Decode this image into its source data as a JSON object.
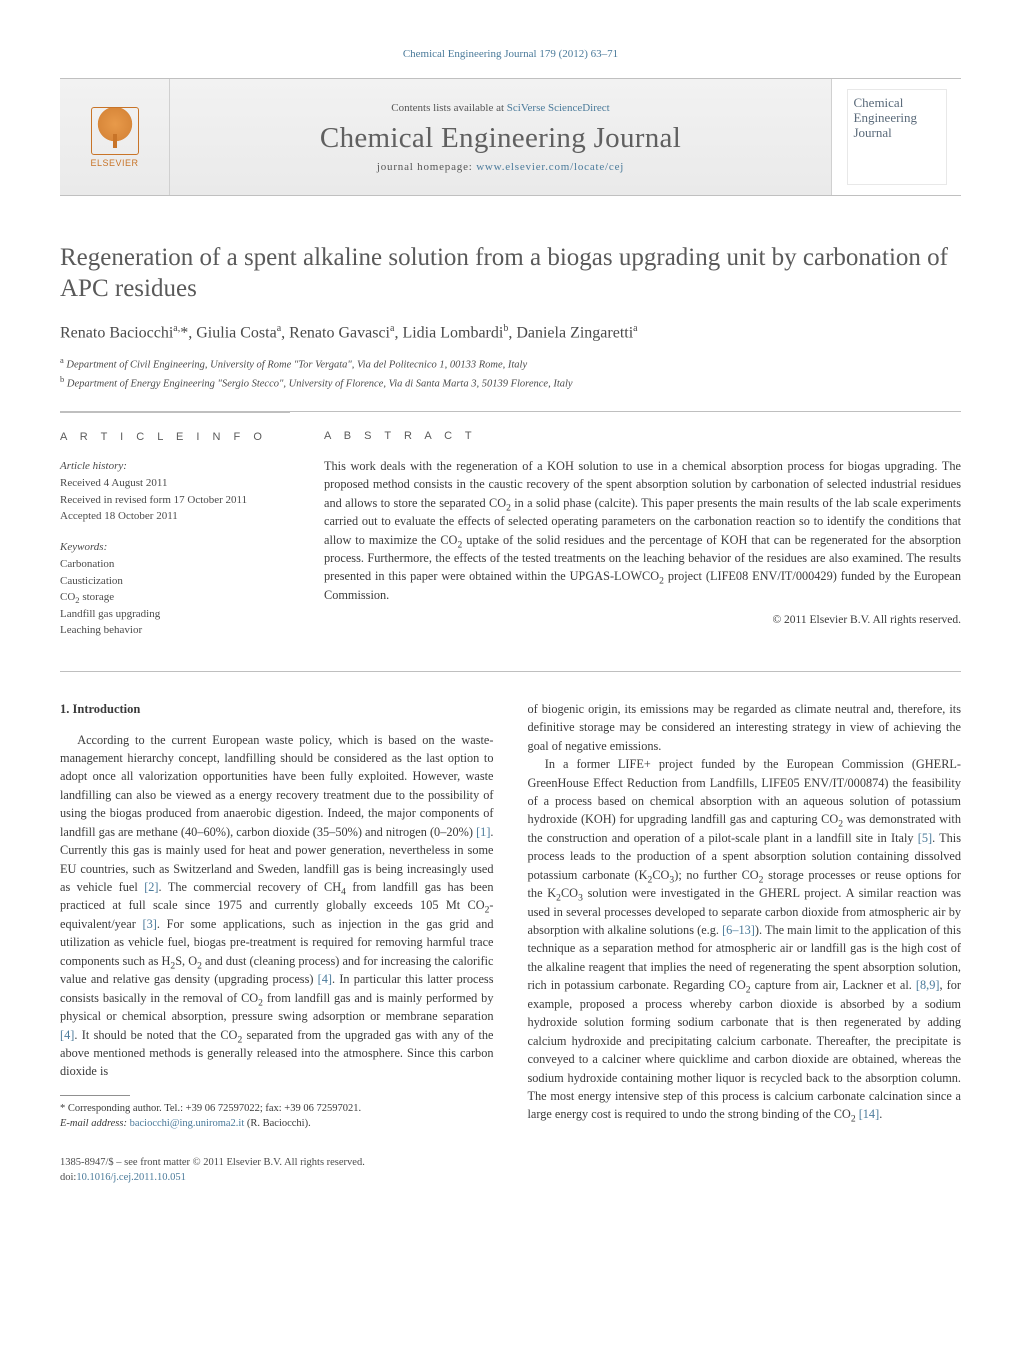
{
  "header": {
    "citation": "Chemical Engineering Journal 179 (2012) 63–71",
    "contents_prefix": "Contents lists available at ",
    "contents_link": "SciVerse ScienceDirect",
    "journal_title": "Chemical Engineering Journal",
    "homepage_prefix": "journal homepage: ",
    "homepage_url": "www.elsevier.com/locate/cej",
    "publisher": "ELSEVIER",
    "cover_text_l1": "Chemical",
    "cover_text_l2": "Engineering",
    "cover_text_l3": "Journal"
  },
  "article": {
    "title": "Regeneration of a spent alkaline solution from a biogas upgrading unit by carbonation of APC residues",
    "authors_html": "Renato Baciocchi<sup>a,</sup>*, Giulia Costa<sup>a</sup>, Renato Gavasci<sup>a</sup>, Lidia Lombardi<sup>b</sup>, Daniela Zingaretti<sup>a</sup>",
    "affiliations": [
      "Department of Civil Engineering, University of Rome \"Tor Vergata\", Via del Politecnico 1, 00133 Rome, Italy",
      "Department of Energy Engineering \"Sergio Stecco\", University of Florence, Via di Santa Marta 3, 50139 Florence, Italy"
    ],
    "aff_markers": [
      "a",
      "b"
    ]
  },
  "info": {
    "heading": "A R T I C L E    I N F O",
    "history_head": "Article history:",
    "history": [
      "Received 4 August 2011",
      "Received in revised form 17 October 2011",
      "Accepted 18 October 2011"
    ],
    "keywords_head": "Keywords:",
    "keywords": [
      "Carbonation",
      "Causticization",
      "CO₂ storage",
      "Landfill gas upgrading",
      "Leaching behavior"
    ]
  },
  "abstract": {
    "heading": "A B S T R A C T",
    "text": "This work deals with the regeneration of a KOH solution to use in a chemical absorption process for biogas upgrading. The proposed method consists in the caustic recovery of the spent absorption solution by carbonation of selected industrial residues and allows to store the separated CO₂ in a solid phase (calcite). This paper presents the main results of the lab scale experiments carried out to evaluate the effects of selected operating parameters on the carbonation reaction so to identify the conditions that allow to maximize the CO₂ uptake of the solid residues and the percentage of KOH that can be regenerated for the absorption process. Furthermore, the effects of the tested treatments on the leaching behavior of the residues are also examined. The results presented in this paper were obtained within the UPGAS-LOWCO₂ project (LIFE08 ENV/IT/000429) funded by the European Commission.",
    "copyright": "© 2011 Elsevier B.V. All rights reserved."
  },
  "body": {
    "section_heading": "1.  Introduction",
    "p1": "According to the current European waste policy, which is based on the waste-management hierarchy concept, landfilling should be considered as the last option to adopt once all valorization opportunities have been fully exploited. However, waste landfilling can also be viewed as a energy recovery treatment due to the possibility of using the biogas produced from anaerobic digestion. Indeed, the major components of landfill gas are methane (40–60%), carbon dioxide (35–50%) and nitrogen (0–20%) [1]. Currently this gas is mainly used for heat and power generation, nevertheless in some EU countries, such as Switzerland and Sweden, landfill gas is being increasingly used as vehicle fuel [2]. The commercial recovery of CH₄ from landfill gas has been practiced at full scale since 1975 and currently globally exceeds 105 Mt CO₂-equivalent/year [3]. For some applications, such as injection in the gas grid and utilization as vehicle fuel, biogas pre-treatment is required for removing harmful trace components such as H₂S, O₂ and dust (cleaning process) and for increasing the calorific value and relative gas density (upgrading process) [4]. In particular this latter process consists basically in the removal of CO₂ from landfill gas and is mainly performed by physical or chemical absorption, pressure swing adsorption or membrane separation [4]. It should be noted that the CO₂ separated from the upgraded gas with any of the above mentioned methods is generally released into the atmosphere. Since this carbon dioxide is",
    "p2": "of biogenic origin, its emissions may be regarded as climate neutral and, therefore, its definitive storage may be considered an interesting strategy in view of achieving the goal of negative emissions.",
    "p3": "In a former LIFE+ project funded by the European Commission (GHERL-GreenHouse Effect Reduction from Landfills, LIFE05 ENV/IT/000874) the feasibility of a process based on chemical absorption with an aqueous solution of potassium hydroxide (KOH) for upgrading landfill gas and capturing CO₂ was demonstrated with the construction and operation of a pilot-scale plant in a landfill site in Italy [5]. This process leads to the production of a spent absorption solution containing dissolved potassium carbonate (K₂CO₃); no further CO₂ storage processes or reuse options for the K₂CO₃ solution were investigated in the GHERL project. A similar reaction was used in several processes developed to separate carbon dioxide from atmospheric air by absorption with alkaline solutions (e.g. [6–13]). The main limit to the application of this technique as a separation method for atmospheric air or landfill gas is the high cost of the alkaline reagent that implies the need of regenerating the spent absorption solution, rich in potassium carbonate. Regarding CO₂ capture from air, Lackner et al. [8,9], for example, proposed a process whereby carbon dioxide is absorbed by a sodium hydroxide solution forming sodium carbonate that is then regenerated by adding calcium hydroxide and precipitating calcium carbonate. Thereafter, the precipitate is conveyed to a calciner where quicklime and carbon dioxide are obtained, whereas the sodium hydroxide containing mother liquor is recycled back to the absorption column. The most energy intensive step of this process is calcium carbonate calcination since a large energy cost is required to undo the strong binding of the CO₂ [14]."
  },
  "footnotes": {
    "corresponding": "* Corresponding author. Tel.: +39 06 72597022; fax: +39 06 72597021.",
    "email_label": "E-mail address: ",
    "email": "baciocchi@ing.uniroma2.it",
    "email_suffix": " (R. Baciocchi)."
  },
  "footer": {
    "line1": "1385-8947/$ – see front matter © 2011 Elsevier B.V. All rights reserved.",
    "doi_prefix": "doi:",
    "doi": "10.1016/j.cej.2011.10.051"
  },
  "colors": {
    "link": "#4a7a9a",
    "text": "#3a3a3a",
    "rule": "#bfbfbf",
    "banner_bg_top": "#f2f2f2",
    "banner_bg_bot": "#eaeaea",
    "elsevier": "#c87428"
  }
}
